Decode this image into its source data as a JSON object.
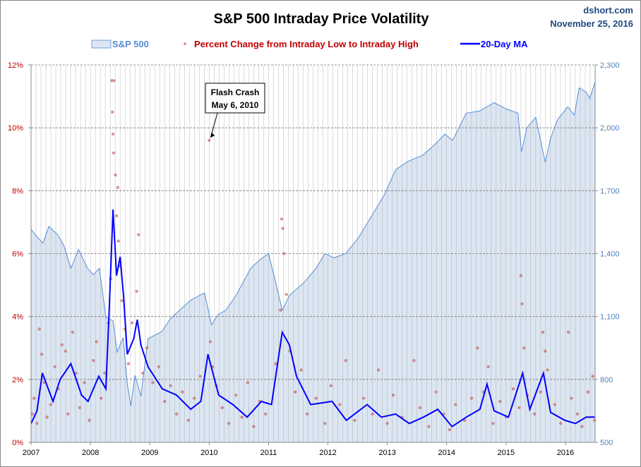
{
  "chart_data": {
    "type": "line",
    "title": "S&P 500 Intraday Price Volatility",
    "source": "dshort.com",
    "date": "November 25, 2016",
    "x_ticks": [
      "2007",
      "2008",
      "2009",
      "2010",
      "2011",
      "2012",
      "2013",
      "2014",
      "2015",
      "2016"
    ],
    "xlim": [
      2007,
      2016.5
    ],
    "y_left": {
      "ticks": [
        "0%",
        "2%",
        "4%",
        "6%",
        "8%",
        "10%",
        "12%"
      ],
      "ylim": [
        0,
        12
      ],
      "color": "#C00000"
    },
    "y_right": {
      "ticks": [
        "500",
        "800",
        "1,100",
        "1,400",
        "1,700",
        "2,000",
        "2,300"
      ],
      "ylim": [
        500,
        2300
      ],
      "color": "#4F81BD"
    },
    "grid": {
      "horizontal": true,
      "vertical": true
    },
    "legend_placement": "top",
    "legend": {
      "sp500": "S&P 500",
      "pct": "Percent Change from Intraday Low to Intraday High",
      "ma": "20-Day MA"
    },
    "annotation": {
      "line1": "Flash Crash",
      "line2": "May 6, 2010",
      "x": 2010.0,
      "y": 9.6
    },
    "colors": {
      "sp500_fill": "#DCE6F2",
      "sp500_line": "#558ED5",
      "pct": "#C0504D",
      "ma": "#0000FF"
    },
    "series": [
      {
        "name": "S&P 500",
        "axis": "right",
        "type": "area",
        "points": [
          [
            2007.0,
            1516
          ],
          [
            2007.1,
            1480
          ],
          [
            2007.2,
            1450
          ],
          [
            2007.3,
            1530
          ],
          [
            2007.45,
            1490
          ],
          [
            2007.55,
            1440
          ],
          [
            2007.67,
            1330
          ],
          [
            2007.8,
            1420
          ],
          [
            2007.95,
            1330
          ],
          [
            2008.05,
            1300
          ],
          [
            2008.15,
            1330
          ],
          [
            2008.26,
            1095
          ],
          [
            2008.38,
            1080
          ],
          [
            2008.45,
            930
          ],
          [
            2008.55,
            1000
          ],
          [
            2008.62,
            780
          ],
          [
            2008.68,
            675
          ],
          [
            2008.75,
            820
          ],
          [
            2008.85,
            720
          ],
          [
            2008.97,
            994
          ],
          [
            2009.2,
            1028
          ],
          [
            2009.35,
            1090
          ],
          [
            2009.5,
            1130
          ],
          [
            2009.7,
            1180
          ],
          [
            2009.92,
            1213
          ],
          [
            2010.04,
            1060
          ],
          [
            2010.15,
            1110
          ],
          [
            2010.28,
            1130
          ],
          [
            2010.45,
            1200
          ],
          [
            2010.7,
            1330
          ],
          [
            2010.85,
            1370
          ],
          [
            2011.0,
            1400
          ],
          [
            2011.12,
            1263
          ],
          [
            2011.23,
            1130
          ],
          [
            2011.35,
            1200
          ],
          [
            2011.6,
            1263
          ],
          [
            2011.8,
            1330
          ],
          [
            2011.95,
            1400
          ],
          [
            2012.1,
            1380
          ],
          [
            2012.3,
            1400
          ],
          [
            2012.5,
            1470
          ],
          [
            2012.78,
            1600
          ],
          [
            2012.95,
            1680
          ],
          [
            2013.14,
            1800
          ],
          [
            2013.35,
            1840
          ],
          [
            2013.6,
            1870
          ],
          [
            2013.8,
            1920
          ],
          [
            2013.97,
            1970
          ],
          [
            2014.1,
            1940
          ],
          [
            2014.33,
            2070
          ],
          [
            2014.55,
            2080
          ],
          [
            2014.8,
            2120
          ],
          [
            2015.0,
            2090
          ],
          [
            2015.2,
            2070
          ],
          [
            2015.26,
            1885
          ],
          [
            2015.35,
            2000
          ],
          [
            2015.5,
            2050
          ],
          [
            2015.66,
            1835
          ],
          [
            2015.75,
            1950
          ],
          [
            2015.87,
            2040
          ],
          [
            2016.04,
            2100
          ],
          [
            2016.15,
            2060
          ],
          [
            2016.23,
            2190
          ],
          [
            2016.35,
            2170
          ],
          [
            2016.41,
            2140
          ],
          [
            2016.5,
            2220
          ]
        ]
      },
      {
        "name": "20-Day MA",
        "axis": "left",
        "type": "line",
        "points": [
          [
            2007.0,
            0.6
          ],
          [
            2007.1,
            1.0
          ],
          [
            2007.19,
            2.2
          ],
          [
            2007.37,
            1.3
          ],
          [
            2007.49,
            2.0
          ],
          [
            2007.67,
            2.5
          ],
          [
            2007.85,
            1.5
          ],
          [
            2007.96,
            1.3
          ],
          [
            2008.14,
            2.1
          ],
          [
            2008.26,
            1.7
          ],
          [
            2008.32,
            4.4
          ],
          [
            2008.38,
            7.4
          ],
          [
            2008.44,
            5.3
          ],
          [
            2008.5,
            5.9
          ],
          [
            2008.56,
            4.6
          ],
          [
            2008.62,
            2.8
          ],
          [
            2008.73,
            3.3
          ],
          [
            2008.79,
            3.9
          ],
          [
            2008.85,
            3.1
          ],
          [
            2008.97,
            2.4
          ],
          [
            2009.21,
            1.7
          ],
          [
            2009.45,
            1.5
          ],
          [
            2009.69,
            1.05
          ],
          [
            2009.86,
            1.3
          ],
          [
            2009.98,
            2.8
          ],
          [
            2010.16,
            1.5
          ],
          [
            2010.4,
            1.2
          ],
          [
            2010.64,
            0.8
          ],
          [
            2010.88,
            1.3
          ],
          [
            2011.05,
            1.2
          ],
          [
            2011.23,
            3.5
          ],
          [
            2011.35,
            3.1
          ],
          [
            2011.47,
            2.1
          ],
          [
            2011.71,
            1.2
          ],
          [
            2012.07,
            1.3
          ],
          [
            2012.31,
            0.7
          ],
          [
            2012.66,
            1.2
          ],
          [
            2012.9,
            0.8
          ],
          [
            2013.14,
            0.9
          ],
          [
            2013.37,
            0.6
          ],
          [
            2013.61,
            0.8
          ],
          [
            2013.85,
            1.05
          ],
          [
            2014.09,
            0.5
          ],
          [
            2014.33,
            0.8
          ],
          [
            2014.56,
            1.05
          ],
          [
            2014.68,
            1.85
          ],
          [
            2014.8,
            1.0
          ],
          [
            2015.04,
            0.8
          ],
          [
            2015.28,
            2.2
          ],
          [
            2015.4,
            1.05
          ],
          [
            2015.63,
            2.2
          ],
          [
            2015.75,
            0.95
          ],
          [
            2015.99,
            0.7
          ],
          [
            2016.17,
            0.6
          ],
          [
            2016.35,
            0.8
          ],
          [
            2016.5,
            0.8
          ]
        ]
      },
      {
        "name": "Percent Change from Intraday Low to Intraday High",
        "axis": "left",
        "type": "scatter",
        "points": [
          [
            2007.02,
            0.9
          ],
          [
            2007.05,
            1.4
          ],
          [
            2007.1,
            0.6
          ],
          [
            2007.14,
            3.6
          ],
          [
            2007.18,
            2.8
          ],
          [
            2007.22,
            1.9
          ],
          [
            2007.27,
            0.8
          ],
          [
            2007.33,
            1.2
          ],
          [
            2007.4,
            2.4
          ],
          [
            2007.46,
            1.7
          ],
          [
            2007.52,
            3.1
          ],
          [
            2007.58,
            2.9
          ],
          [
            2007.62,
            0.9
          ],
          [
            2007.7,
            3.5
          ],
          [
            2007.76,
            2.2
          ],
          [
            2007.82,
            1.1
          ],
          [
            2007.9,
            1.9
          ],
          [
            2007.98,
            0.7
          ],
          [
            2008.05,
            2.6
          ],
          [
            2008.1,
            3.2
          ],
          [
            2008.18,
            1.4
          ],
          [
            2008.24,
            2.2
          ],
          [
            2008.3,
            3.8
          ],
          [
            2008.34,
            5.2
          ],
          [
            2008.36,
            11.5
          ],
          [
            2008.37,
            10.5
          ],
          [
            2008.38,
            9.8
          ],
          [
            2008.39,
            9.2
          ],
          [
            2008.4,
            11.5
          ],
          [
            2008.42,
            8.5
          ],
          [
            2008.44,
            7.2
          ],
          [
            2008.46,
            8.1
          ],
          [
            2008.47,
            6.4
          ],
          [
            2008.5,
            5.6
          ],
          [
            2008.53,
            4.5
          ],
          [
            2008.58,
            3.6
          ],
          [
            2008.64,
            2.5
          ],
          [
            2008.7,
            3.8
          ],
          [
            2008.78,
            4.8
          ],
          [
            2008.81,
            6.6
          ],
          [
            2008.88,
            2.2
          ],
          [
            2008.95,
            3.0
          ],
          [
            2009.05,
            1.9
          ],
          [
            2009.15,
            2.4
          ],
          [
            2009.25,
            1.3
          ],
          [
            2009.35,
            1.8
          ],
          [
            2009.45,
            0.9
          ],
          [
            2009.55,
            1.6
          ],
          [
            2009.65,
            0.7
          ],
          [
            2009.75,
            1.4
          ],
          [
            2009.85,
            2.1
          ],
          [
            2010.0,
            9.6
          ],
          [
            2010.02,
            3.2
          ],
          [
            2010.06,
            2.4
          ],
          [
            2010.12,
            1.8
          ],
          [
            2010.22,
            1.1
          ],
          [
            2010.33,
            0.6
          ],
          [
            2010.45,
            1.5
          ],
          [
            2010.55,
            0.8
          ],
          [
            2010.65,
            1.9
          ],
          [
            2010.75,
            0.5
          ],
          [
            2010.85,
            1.3
          ],
          [
            2010.95,
            0.9
          ],
          [
            2011.12,
            2.5
          ],
          [
            2011.2,
            4.2
          ],
          [
            2011.22,
            7.1
          ],
          [
            2011.24,
            6.8
          ],
          [
            2011.26,
            6.0
          ],
          [
            2011.3,
            4.7
          ],
          [
            2011.36,
            2.9
          ],
          [
            2011.45,
            1.6
          ],
          [
            2011.55,
            2.3
          ],
          [
            2011.65,
            0.9
          ],
          [
            2011.8,
            1.4
          ],
          [
            2011.95,
            0.6
          ],
          [
            2012.05,
            1.8
          ],
          [
            2012.2,
            1.2
          ],
          [
            2012.3,
            2.6
          ],
          [
            2012.45,
            0.7
          ],
          [
            2012.6,
            1.4
          ],
          [
            2012.75,
            0.9
          ],
          [
            2012.85,
            2.3
          ],
          [
            2013.0,
            0.6
          ],
          [
            2013.1,
            1.5
          ],
          [
            2013.25,
            0.8
          ],
          [
            2013.45,
            2.6
          ],
          [
            2013.55,
            1.1
          ],
          [
            2013.7,
            0.5
          ],
          [
            2013.82,
            1.6
          ],
          [
            2013.95,
            0.9
          ],
          [
            2014.05,
            0.4
          ],
          [
            2014.15,
            1.2
          ],
          [
            2014.3,
            0.7
          ],
          [
            2014.42,
            1.4
          ],
          [
            2014.52,
            3.0
          ],
          [
            2014.62,
            1.6
          ],
          [
            2014.7,
            2.4
          ],
          [
            2014.78,
            0.6
          ],
          [
            2014.9,
            1.3
          ],
          [
            2015.0,
            0.8
          ],
          [
            2015.12,
            1.7
          ],
          [
            2015.22,
            1.1
          ],
          [
            2015.25,
            5.3
          ],
          [
            2015.27,
            4.4
          ],
          [
            2015.3,
            3.0
          ],
          [
            2015.36,
            1.5
          ],
          [
            2015.48,
            0.9
          ],
          [
            2015.58,
            1.6
          ],
          [
            2015.62,
            3.5
          ],
          [
            2015.66,
            2.9
          ],
          [
            2015.7,
            2.3
          ],
          [
            2015.82,
            1.2
          ],
          [
            2015.92,
            0.6
          ],
          [
            2016.05,
            3.5
          ],
          [
            2016.1,
            1.4
          ],
          [
            2016.2,
            0.9
          ],
          [
            2016.28,
            0.5
          ],
          [
            2016.38,
            1.6
          ],
          [
            2016.46,
            2.1
          ],
          [
            2016.49,
            0.7
          ]
        ]
      }
    ]
  }
}
